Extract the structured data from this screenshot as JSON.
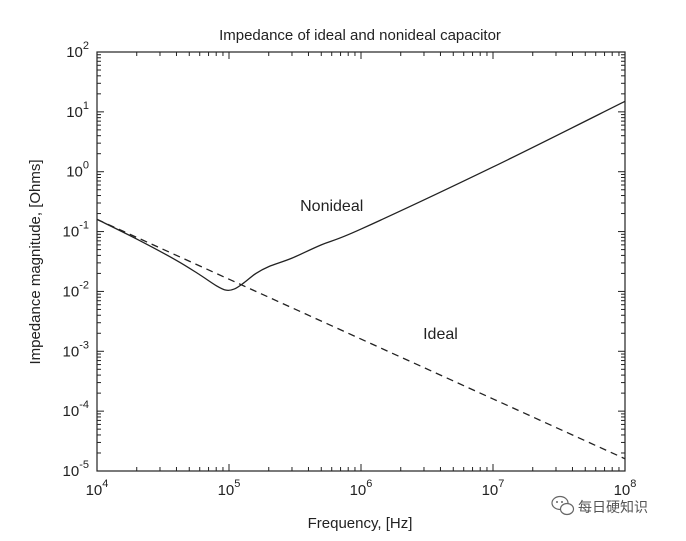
{
  "chart_data": {
    "type": "line",
    "title": "Impedance of ideal and nonideal capacitor",
    "xlabel": "Frequency, [Hz]",
    "ylabel": "Impedance magnitude, [Ohms]",
    "xscale": "log",
    "yscale": "log",
    "xlim": [
      10000,
      100000000
    ],
    "ylim": [
      1e-05,
      100
    ],
    "x_ticks": [
      {
        "base": "10",
        "exp": "4",
        "value": 10000
      },
      {
        "base": "10",
        "exp": "5",
        "value": 100000
      },
      {
        "base": "10",
        "exp": "6",
        "value": 1000000
      },
      {
        "base": "10",
        "exp": "7",
        "value": 10000000
      },
      {
        "base": "10",
        "exp": "8",
        "value": 100000000
      }
    ],
    "y_ticks": [
      {
        "base": "10",
        "exp": "2",
        "value": 100
      },
      {
        "base": "10",
        "exp": "1",
        "value": 10
      },
      {
        "base": "10",
        "exp": "0",
        "value": 1
      },
      {
        "base": "10",
        "exp": "-1",
        "value": 0.1
      },
      {
        "base": "10",
        "exp": "-2",
        "value": 0.01
      },
      {
        "base": "10",
        "exp": "-3",
        "value": 0.001
      },
      {
        "base": "10",
        "exp": "-4",
        "value": 0.0001
      },
      {
        "base": "10",
        "exp": "-5",
        "value": 1e-05
      }
    ],
    "grid": false,
    "series": [
      {
        "name": "Nonideal",
        "style": "solid",
        "color": "#222222",
        "x": [
          10000,
          20000,
          40000,
          60000,
          80000,
          95000,
          110000,
          130000,
          160000,
          200000,
          300000,
          500000,
          1000000,
          10000000,
          100000000
        ],
        "y": [
          0.16,
          0.075,
          0.033,
          0.019,
          0.0125,
          0.0105,
          0.011,
          0.014,
          0.02,
          0.026,
          0.036,
          0.06,
          0.11,
          1.2,
          15
        ]
      },
      {
        "name": "Ideal",
        "style": "dashed",
        "color": "#222222",
        "x": [
          10000,
          100000,
          1000000,
          10000000,
          100000000
        ],
        "y": [
          0.16,
          0.016,
          0.0016,
          0.00016,
          1.6e-05
        ]
      }
    ],
    "annotations": [
      {
        "text": "Nonideal",
        "x": 600000,
        "y": 0.22
      },
      {
        "text": "Ideal",
        "x": 4000000,
        "y": 0.0016
      }
    ]
  },
  "watermark": {
    "text": "每日硬知识",
    "icon": "wechat-icon"
  }
}
